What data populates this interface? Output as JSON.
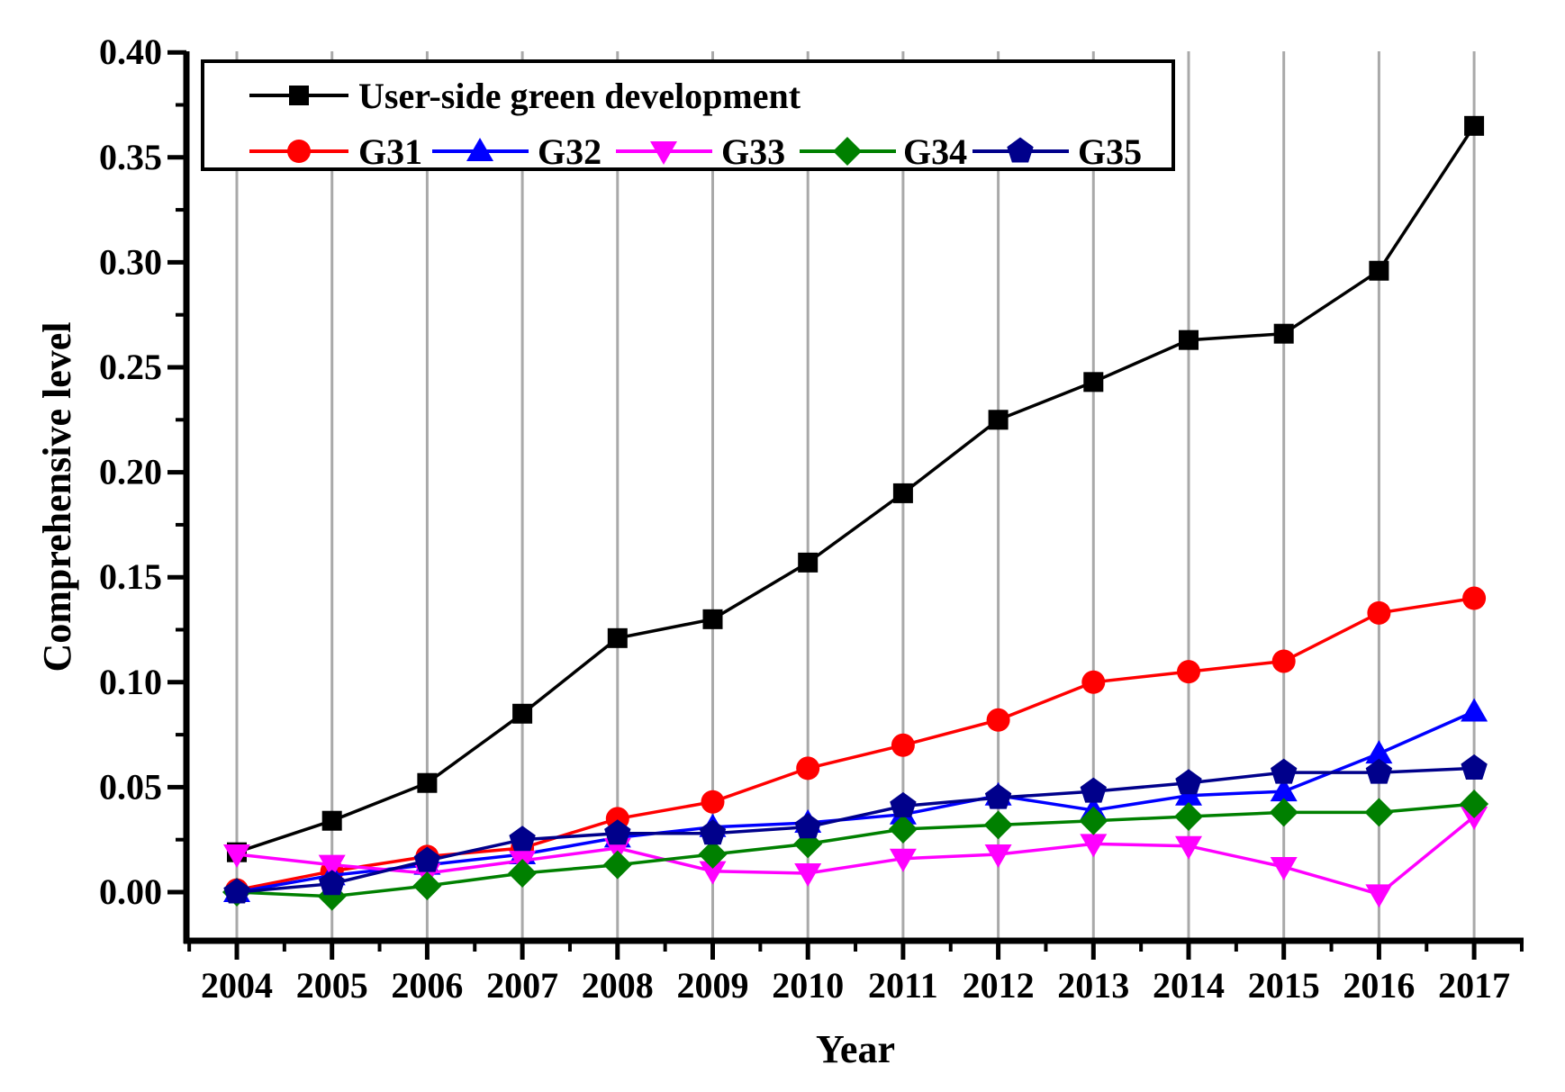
{
  "chart_data": {
    "type": "line",
    "title": "",
    "xlabel": "Year",
    "ylabel": "Comprehensive level",
    "x": [
      2004,
      2005,
      2006,
      2007,
      2008,
      2009,
      2010,
      2011,
      2012,
      2013,
      2014,
      2015,
      2016,
      2017
    ],
    "xtick_labels": [
      "2004",
      "2005",
      "2006",
      "2007",
      "2008",
      "2009",
      "2010",
      "2011",
      "2012",
      "2013",
      "2014",
      "2015",
      "2016",
      "2017"
    ],
    "ylim": [
      -0.023,
      0.4
    ],
    "yticks_major": [
      0.0,
      0.05,
      0.1,
      0.15,
      0.2,
      0.25,
      0.3,
      0.35,
      0.4
    ],
    "ytick_labels": [
      "0.00",
      "0.05",
      "0.10",
      "0.15",
      "0.20",
      "0.25",
      "0.30",
      "0.35",
      "0.40"
    ],
    "yticks_minor_step": 0.025,
    "grid": "vertical gray gridline at each year",
    "grid_color": "#A9A9A9",
    "legend_position": "top-left inside plot",
    "series": [
      {
        "name": "User-side green development",
        "color": "#000000",
        "marker": "square",
        "values": [
          0.019,
          0.034,
          0.052,
          0.085,
          0.121,
          0.13,
          0.157,
          0.19,
          0.225,
          0.243,
          0.263,
          0.266,
          0.296,
          0.365
        ]
      },
      {
        "name": "G31",
        "color": "#FF0000",
        "marker": "circle",
        "values": [
          0.001,
          0.01,
          0.017,
          0.021,
          0.035,
          0.043,
          0.059,
          0.07,
          0.082,
          0.1,
          0.105,
          0.11,
          0.133,
          0.14
        ]
      },
      {
        "name": "G32",
        "color": "#0000FF",
        "marker": "triangle-up",
        "values": [
          0.0,
          0.008,
          0.013,
          0.018,
          0.026,
          0.031,
          0.033,
          0.037,
          0.046,
          0.039,
          0.046,
          0.048,
          0.066,
          0.086
        ]
      },
      {
        "name": "G33",
        "color": "#FF00FF",
        "marker": "triangle-down",
        "values": [
          0.018,
          0.013,
          0.009,
          0.015,
          0.021,
          0.01,
          0.009,
          0.016,
          0.018,
          0.023,
          0.022,
          0.012,
          -0.001,
          0.036
        ]
      },
      {
        "name": "G34",
        "color": "#008000",
        "marker": "diamond",
        "values": [
          0.0,
          -0.002,
          0.003,
          0.009,
          0.013,
          0.018,
          0.023,
          0.03,
          0.032,
          0.034,
          0.036,
          0.038,
          0.038,
          0.042
        ]
      },
      {
        "name": "G35",
        "color": "#00008B",
        "marker": "pentagon",
        "values": [
          0.0,
          0.004,
          0.015,
          0.025,
          0.028,
          0.028,
          0.031,
          0.041,
          0.045,
          0.048,
          0.052,
          0.057,
          0.057,
          0.059
        ]
      }
    ]
  }
}
